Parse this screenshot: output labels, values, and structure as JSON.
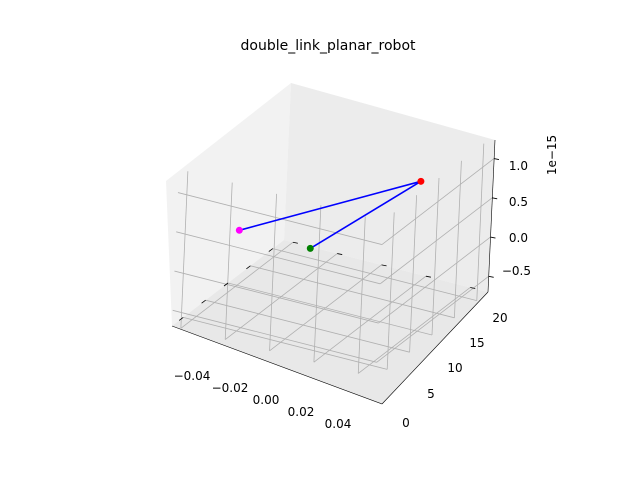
{
  "chart_data": {
    "type": "line3d",
    "title": "double_link_planar_robot",
    "x_tick_labels": [
      "−0.04",
      "−0.02",
      "0.00",
      "0.02",
      "0.04"
    ],
    "y_tick_labels": [
      "0",
      "5",
      "10",
      "15",
      "20"
    ],
    "z_tick_labels": [
      "−0.5",
      "0.0",
      "0.5",
      "1.0"
    ],
    "z_offset_label": "1e−15",
    "xlim": [
      -0.05,
      0.05
    ],
    "ylim": [
      -1,
      22
    ],
    "zlim": [
      -0.7,
      1.3
    ],
    "grid": true,
    "links": [
      {
        "from": "base",
        "to": "elbow",
        "color": "#0000ff"
      },
      {
        "from": "elbow",
        "to": "end_effector",
        "color": "#0000ff"
      }
    ],
    "points": [
      {
        "id": "base",
        "x": 0.0,
        "y": 0.0,
        "z": 0.0,
        "color": "#ff00ff"
      },
      {
        "id": "elbow",
        "x": 0.0,
        "y": 20.0,
        "z": 1.2,
        "color": "#ff0000"
      },
      {
        "id": "end_effector",
        "x": 0.0,
        "y": 8.0,
        "z": 0.0,
        "color": "#008000"
      }
    ]
  }
}
